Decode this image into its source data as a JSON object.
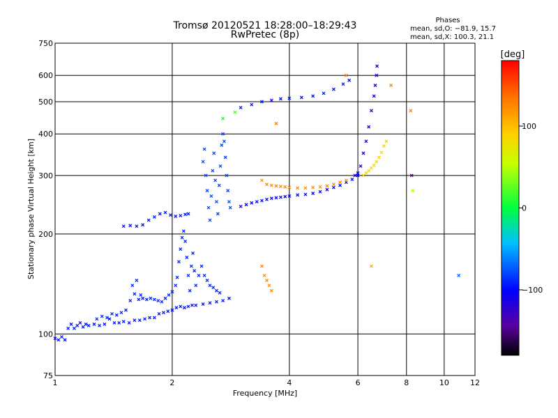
{
  "chart_data": {
    "type": "scatter",
    "title": "Tromsø 20120521 18:28:00–18:29:43",
    "subtitle": "RwPretec (8p)",
    "xlabel": "Frequency [MHz]",
    "ylabel": "Stationary phase Virtual Height [km]",
    "x_scale": "log",
    "y_scale": "log",
    "xlim": [
      1,
      12
    ],
    "ylim": [
      75,
      750
    ],
    "grid": true,
    "x_ticks": [
      "1",
      "2",
      "4",
      "6",
      "8",
      "10",
      "12"
    ],
    "x_tick_values": [
      1,
      2,
      4,
      6,
      8,
      10,
      12
    ],
    "y_ticks": [
      "750",
      "600",
      "500",
      "400",
      "300",
      "200",
      "100",
      "75"
    ],
    "y_tick_values": [
      750,
      600,
      500,
      400,
      300,
      200,
      100,
      75
    ],
    "phases_stats": {
      "heading": "Phases",
      "line_o": "mean, sd,O: −81.9, 15.7",
      "line_x": "mean, sd,X: 100.3, 21.1"
    },
    "colorbar": {
      "label": "[deg]",
      "ticks": [
        "100",
        "0",
        "−100"
      ],
      "tick_values": [
        100,
        0,
        -100
      ],
      "range": [
        -180,
        180
      ]
    },
    "series": [
      {
        "points": [
          [
            1.0,
            97,
            -95
          ],
          [
            1.02,
            96,
            -95
          ],
          [
            1.04,
            98,
            -95
          ],
          [
            1.06,
            96,
            -95
          ],
          [
            1.08,
            104,
            -95
          ],
          [
            1.1,
            107,
            -95
          ],
          [
            1.12,
            104,
            -95
          ],
          [
            1.14,
            106,
            -95
          ],
          [
            1.16,
            108,
            -95
          ],
          [
            1.18,
            105,
            -95
          ],
          [
            1.2,
            107,
            -95
          ],
          [
            1.22,
            106,
            -95
          ],
          [
            1.26,
            107,
            -95
          ],
          [
            1.3,
            106,
            -95
          ],
          [
            1.34,
            107,
            -95
          ],
          [
            1.38,
            111,
            -95
          ],
          [
            1.42,
            108,
            -95
          ],
          [
            1.46,
            108,
            -95
          ],
          [
            1.5,
            109,
            -95
          ],
          [
            1.55,
            108,
            -95
          ],
          [
            1.6,
            110,
            -95
          ],
          [
            1.65,
            110,
            -95
          ],
          [
            1.7,
            111,
            -95
          ],
          [
            1.75,
            112,
            -95
          ],
          [
            1.8,
            112,
            -95
          ],
          [
            1.85,
            115,
            -95
          ],
          [
            1.9,
            116,
            -95
          ],
          [
            1.95,
            117,
            -95
          ],
          [
            2.0,
            118,
            -95
          ],
          [
            2.05,
            120,
            -95
          ],
          [
            2.1,
            121,
            -95
          ],
          [
            2.15,
            120,
            -95
          ],
          [
            2.2,
            121,
            -95
          ],
          [
            2.25,
            122,
            -95
          ],
          [
            2.3,
            122,
            -95
          ],
          [
            2.4,
            123,
            -95
          ],
          [
            2.5,
            124,
            -95
          ],
          [
            2.6,
            125,
            -95
          ],
          [
            2.7,
            126,
            -95
          ],
          [
            2.8,
            128,
            -95
          ]
        ]
      },
      {
        "points": [
          [
            1.28,
            111,
            -90
          ],
          [
            1.32,
            113,
            -90
          ],
          [
            1.36,
            112,
            -90
          ],
          [
            1.4,
            115,
            -90
          ],
          [
            1.44,
            114,
            -90
          ],
          [
            1.48,
            116,
            -90
          ],
          [
            1.52,
            118,
            -90
          ],
          [
            1.56,
            126,
            -90
          ],
          [
            1.58,
            140,
            -90
          ],
          [
            1.6,
            132,
            -90
          ],
          [
            1.62,
            145,
            -90
          ],
          [
            1.64,
            127,
            -90
          ],
          [
            1.66,
            131,
            -90
          ],
          [
            1.68,
            128,
            -90
          ],
          [
            1.72,
            127,
            -90
          ],
          [
            1.76,
            128,
            -90
          ],
          [
            1.8,
            127,
            -90
          ],
          [
            1.84,
            126,
            -90
          ],
          [
            1.88,
            125,
            -90
          ],
          [
            1.92,
            128,
            -90
          ],
          [
            1.96,
            131,
            -90
          ],
          [
            2.0,
            134,
            -90
          ],
          [
            2.04,
            140,
            -90
          ],
          [
            2.06,
            148,
            -90
          ],
          [
            2.08,
            165,
            -90
          ],
          [
            2.1,
            180,
            -90
          ],
          [
            2.12,
            195,
            -90
          ],
          [
            2.14,
            204,
            -90
          ],
          [
            2.16,
            190,
            -90
          ],
          [
            2.18,
            170,
            -90
          ],
          [
            2.2,
            150,
            -90
          ],
          [
            2.22,
            135,
            -90
          ],
          [
            2.24,
            160,
            -90
          ],
          [
            2.26,
            175,
            -90
          ],
          [
            2.28,
            155,
            -90
          ],
          [
            2.3,
            140,
            -90
          ],
          [
            2.34,
            150,
            -90
          ],
          [
            2.38,
            160,
            -90
          ],
          [
            2.42,
            150,
            -90
          ],
          [
            2.46,
            145,
            -90
          ],
          [
            2.5,
            140,
            -90
          ],
          [
            2.55,
            138,
            -90
          ],
          [
            2.6,
            135,
            -90
          ],
          [
            2.65,
            133,
            -90
          ]
        ]
      },
      {
        "points": [
          [
            1.5,
            211,
            -95
          ],
          [
            1.56,
            212,
            -95
          ],
          [
            1.62,
            211,
            -95
          ],
          [
            1.68,
            213,
            -95
          ],
          [
            1.74,
            220,
            -95
          ],
          [
            1.8,
            225,
            -95
          ],
          [
            1.86,
            230,
            -95
          ],
          [
            1.92,
            232,
            -95
          ],
          [
            1.98,
            228,
            -95
          ],
          [
            2.04,
            226,
            -95
          ],
          [
            2.1,
            227,
            -95
          ],
          [
            2.16,
            229,
            -95
          ],
          [
            2.2,
            230,
            -95
          ]
        ]
      },
      {
        "points": [
          [
            2.4,
            330,
            -78
          ],
          [
            2.42,
            360,
            -80
          ],
          [
            2.44,
            300,
            -78
          ],
          [
            2.46,
            270,
            -80
          ],
          [
            2.48,
            240,
            -78
          ],
          [
            2.5,
            220,
            -80
          ],
          [
            2.52,
            260,
            -78
          ],
          [
            2.54,
            310,
            -80
          ],
          [
            2.56,
            350,
            -78
          ],
          [
            2.58,
            290,
            -80
          ],
          [
            2.6,
            250,
            -78
          ],
          [
            2.62,
            230,
            -80
          ],
          [
            2.64,
            280,
            -78
          ],
          [
            2.66,
            320,
            -80
          ],
          [
            2.68,
            370,
            -78
          ],
          [
            2.7,
            400,
            -80
          ],
          [
            2.72,
            380,
            -78
          ],
          [
            2.74,
            340,
            -80
          ],
          [
            2.76,
            300,
            -78
          ],
          [
            2.78,
            270,
            -80
          ],
          [
            2.8,
            250,
            -78
          ],
          [
            2.82,
            240,
            -80
          ]
        ]
      },
      {
        "points": [
          [
            3.0,
            242,
            -100
          ],
          [
            3.1,
            245,
            -100
          ],
          [
            3.2,
            248,
            -100
          ],
          [
            3.3,
            250,
            -100
          ],
          [
            3.4,
            252,
            -100
          ],
          [
            3.5,
            254,
            -100
          ],
          [
            3.6,
            256,
            -100
          ],
          [
            3.7,
            257,
            -100
          ],
          [
            3.8,
            258,
            -100
          ],
          [
            3.9,
            259,
            -100
          ],
          [
            4.0,
            260,
            -100
          ],
          [
            4.2,
            262,
            -100
          ],
          [
            4.4,
            263,
            -100
          ],
          [
            4.6,
            265,
            -100
          ],
          [
            4.8,
            268,
            -100
          ],
          [
            5.0,
            272,
            -100
          ],
          [
            5.2,
            276,
            -100
          ],
          [
            5.4,
            280,
            -100
          ],
          [
            5.6,
            286,
            -100
          ],
          [
            5.8,
            292,
            -100
          ],
          [
            6.0,
            300,
            -100
          ]
        ]
      },
      {
        "points": [
          [
            5.9,
            300,
            -110
          ],
          [
            6.0,
            305,
            -110
          ],
          [
            6.1,
            320,
            -110
          ],
          [
            6.2,
            350,
            -110
          ],
          [
            6.3,
            380,
            -110
          ],
          [
            6.4,
            420,
            -110
          ],
          [
            6.5,
            470,
            -110
          ],
          [
            6.6,
            520,
            -110
          ],
          [
            6.65,
            560,
            -110
          ],
          [
            6.7,
            600,
            -110
          ],
          [
            6.72,
            640,
            -110
          ]
        ]
      },
      {
        "points": [
          [
            3.0,
            480,
            -95
          ],
          [
            3.2,
            490,
            -95
          ],
          [
            3.4,
            500,
            -95
          ],
          [
            3.6,
            505,
            -95
          ],
          [
            3.8,
            510,
            -95
          ],
          [
            4.0,
            512,
            -95
          ],
          [
            4.3,
            515,
            -95
          ],
          [
            4.6,
            520,
            -95
          ],
          [
            4.9,
            530,
            -95
          ],
          [
            5.2,
            545,
            -95
          ],
          [
            5.5,
            565,
            -95
          ],
          [
            5.7,
            580,
            -95
          ]
        ]
      },
      {
        "points": [
          [
            3.4,
            290,
            120
          ],
          [
            3.5,
            282,
            125
          ],
          [
            3.6,
            280,
            120
          ],
          [
            3.7,
            279,
            128
          ],
          [
            3.8,
            278,
            122
          ],
          [
            3.9,
            277,
            125
          ],
          [
            4.0,
            276,
            120
          ],
          [
            4.2,
            275,
            125
          ],
          [
            4.4,
            275,
            122
          ],
          [
            4.6,
            276,
            125
          ],
          [
            4.8,
            277,
            120
          ],
          [
            5.0,
            279,
            125
          ],
          [
            5.2,
            282,
            122
          ],
          [
            5.4,
            286,
            125
          ],
          [
            5.6,
            290,
            120
          ]
        ]
      },
      {
        "points": [
          [
            6.2,
            300,
            85
          ],
          [
            6.3,
            305,
            82
          ],
          [
            6.4,
            310,
            85
          ],
          [
            6.5,
            316,
            82
          ],
          [
            6.6,
            322,
            85
          ],
          [
            6.7,
            330,
            82
          ],
          [
            6.8,
            340,
            85
          ],
          [
            6.9,
            352,
            82
          ],
          [
            7.0,
            368,
            85
          ],
          [
            7.1,
            380,
            82
          ]
        ]
      },
      {
        "points": [
          [
            3.4,
            160,
            125
          ],
          [
            3.45,
            150,
            120
          ],
          [
            3.5,
            145,
            125
          ],
          [
            3.55,
            140,
            120
          ],
          [
            3.6,
            135,
            125
          ]
        ]
      },
      {
        "points": [
          [
            5.6,
            600,
            130
          ],
          [
            6.5,
            160,
            110
          ],
          [
            7.3,
            560,
            125
          ],
          [
            8.2,
            470,
            130
          ],
          [
            8.25,
            300,
            -150
          ],
          [
            2.9,
            465,
            20
          ],
          [
            2.7,
            445,
            10
          ],
          [
            3.7,
            430,
            130
          ],
          [
            8.3,
            270,
            45
          ],
          [
            10.9,
            150,
            -70
          ]
        ]
      }
    ]
  }
}
